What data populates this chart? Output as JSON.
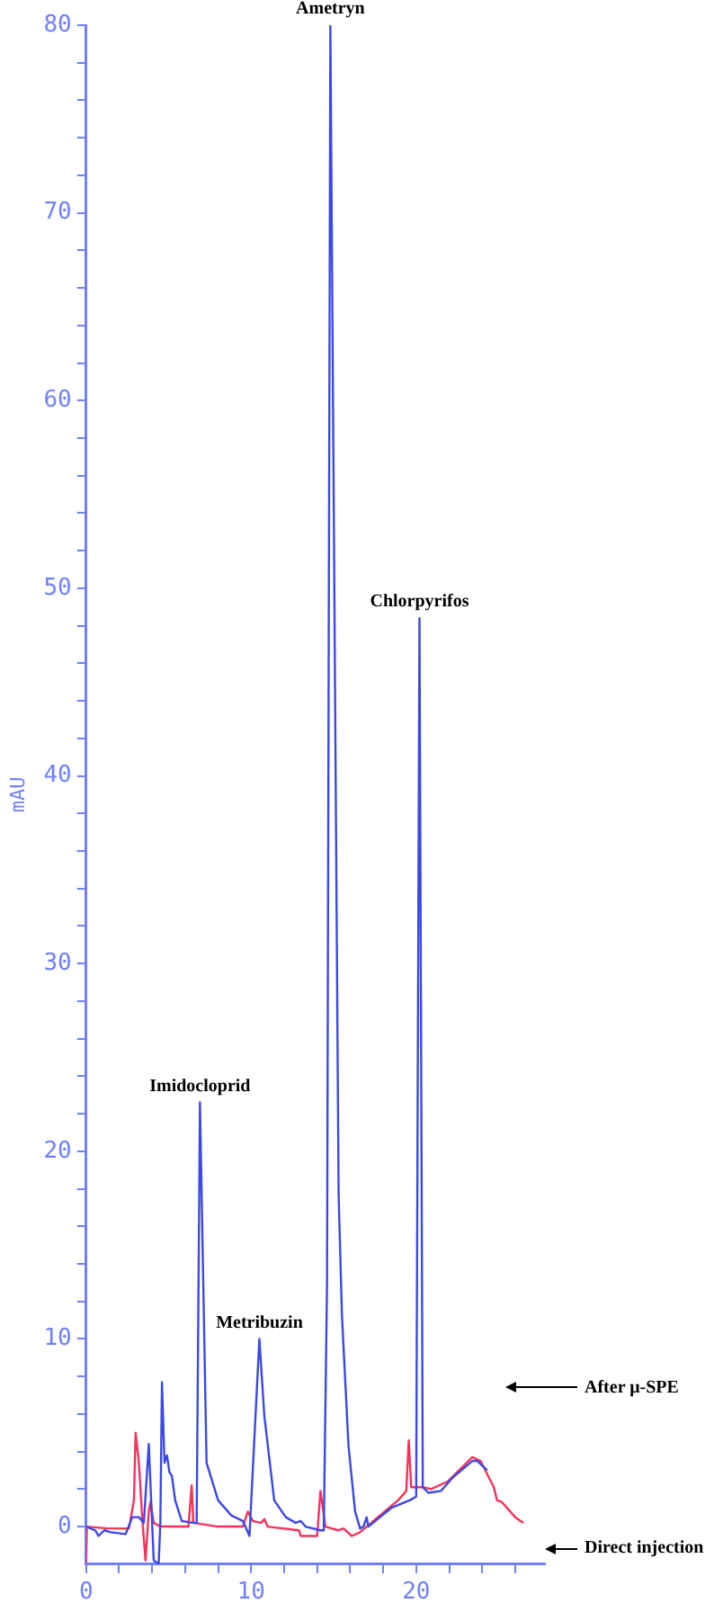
{
  "chart_data": {
    "type": "line",
    "ylabel": "mAU",
    "xlim": [
      0,
      27.8
    ],
    "ylim": [
      -2,
      80
    ],
    "xticks": [
      0,
      {
        "value": 2,
        "label": null
      },
      {
        "value": 4,
        "label": null
      },
      {
        "value": 6,
        "label": null
      },
      {
        "value": 8,
        "label": null
      },
      10,
      {
        "value": 12,
        "label": null
      },
      {
        "value": 14,
        "label": null
      },
      {
        "value": 16,
        "label": null
      },
      {
        "value": 18,
        "label": null
      },
      20,
      {
        "value": 22,
        "label": null
      },
      {
        "value": 24,
        "label": null
      },
      {
        "value": 26,
        "label": null
      }
    ],
    "yticks": [
      0,
      {
        "value": 2,
        "label": null
      },
      {
        "value": 4,
        "label": null
      },
      {
        "value": 6,
        "label": null
      },
      {
        "value": 8,
        "label": null
      },
      10,
      {
        "value": 12,
        "label": null
      },
      {
        "value": 14,
        "label": null
      },
      {
        "value": 16,
        "label": null
      },
      {
        "value": 18,
        "label": null
      },
      20,
      {
        "value": 22,
        "label": null
      },
      {
        "value": 24,
        "label": null
      },
      {
        "value": 26,
        "label": null
      },
      {
        "value": 28,
        "label": null
      },
      30,
      {
        "value": 32,
        "label": null
      },
      {
        "value": 34,
        "label": null
      },
      {
        "value": 36,
        "label": null
      },
      {
        "value": 38,
        "label": null
      },
      40,
      {
        "value": 42,
        "label": null
      },
      {
        "value": 44,
        "label": null
      },
      {
        "value": 46,
        "label": null
      },
      {
        "value": 48,
        "label": null
      },
      50,
      {
        "value": 52,
        "label": null
      },
      {
        "value": 54,
        "label": null
      },
      {
        "value": 56,
        "label": null
      },
      {
        "value": 58,
        "label": null
      },
      60,
      {
        "value": 62,
        "label": null
      },
      {
        "value": 64,
        "label": null
      },
      {
        "value": 66,
        "label": null
      },
      {
        "value": 68,
        "label": null
      },
      70,
      {
        "value": 72,
        "label": null
      },
      {
        "value": 74,
        "label": null
      },
      {
        "value": 76,
        "label": null
      },
      {
        "value": 78,
        "label": null
      },
      80
    ],
    "series": [
      {
        "name": "After μ-SPE",
        "color": "#3a48e6",
        "x": [
          0,
          0.56,
          0.75,
          1.1,
          1.5,
          2.4,
          2.8,
          3.2,
          3.5,
          3.8,
          4.0,
          4.1,
          4.4,
          4.5,
          4.6,
          4.75,
          4.9,
          5.05,
          5.2,
          5.4,
          5.8,
          6.5,
          6.7,
          6.9,
          7.3,
          8.0,
          8.8,
          9.5,
          9.9,
          10.5,
          10.8,
          11.4,
          12.1,
          12.7,
          13.0,
          13.3,
          14.2,
          14.4,
          14.6,
          14.8,
          15.3,
          15.5,
          15.9,
          16.3,
          16.6,
          16.8,
          17.0,
          17.1,
          18.5,
          19.6,
          20.0,
          20.2,
          20.4,
          20.75,
          21.5,
          22.2,
          23.4,
          23.7,
          24.3
        ],
        "values": [
          0,
          -0.2,
          -0.5,
          -0.2,
          -0.3,
          -0.4,
          0.5,
          0.5,
          0.2,
          4.4,
          0.2,
          -1.8,
          -2,
          0.2,
          7.7,
          3.4,
          3.8,
          2.9,
          2.7,
          1.4,
          0.3,
          0.2,
          0.2,
          22.6,
          3.4,
          1.4,
          0.6,
          0.3,
          -0.5,
          10.0,
          5.9,
          1.4,
          0.5,
          0.2,
          0.3,
          0,
          -0.2,
          -0.2,
          13,
          80,
          17.7,
          11.3,
          4.3,
          0.8,
          -0.1,
          0,
          0.5,
          0,
          1.0,
          1.4,
          1.6,
          48.4,
          2.1,
          1.8,
          1.9,
          2.6,
          3.5,
          3.5,
          3.0
        ]
      },
      {
        "name": "Direct injection",
        "color": "#f5325a",
        "x": [
          0,
          0.05,
          1.3,
          2.6,
          2.9,
          3.0,
          3.2,
          3.4,
          3.6,
          3.8,
          3.9,
          4.1,
          4.5,
          6.2,
          6.4,
          6.5,
          8.0,
          9.5,
          9.8,
          10.1,
          10.6,
          10.8,
          11.0,
          12.9,
          13.0,
          14.0,
          14.2,
          14.5,
          15.3,
          15.6,
          16.1,
          16.6,
          17.8,
          18.9,
          19.4,
          19.55,
          19.7,
          20.4,
          20.9,
          21.9,
          23.4,
          23.9,
          24.7,
          24.9,
          25.2,
          26.0,
          26.5
        ],
        "values": [
          -2,
          0,
          -0.1,
          -0.1,
          1.4,
          5.0,
          3.4,
          0.5,
          -1.8,
          0.8,
          1.3,
          0.2,
          0,
          0,
          2.2,
          0.2,
          0,
          0,
          0.8,
          0.3,
          0.2,
          0.4,
          0,
          -0.2,
          -0.5,
          -0.5,
          1.9,
          0,
          -0.2,
          -0.1,
          -0.5,
          -0.3,
          0.6,
          1.4,
          1.9,
          4.6,
          2.1,
          2.1,
          2.0,
          2.4,
          3.7,
          3.5,
          2.1,
          1.4,
          1.3,
          0.5,
          0.2
        ]
      }
    ],
    "annotations": [
      {
        "text": "Ametryn",
        "x": 14.8,
        "y": 80
      },
      {
        "text": "Imidocloprid",
        "x": 6.9,
        "y": 22.6
      },
      {
        "text": "Metribuzin",
        "x": 10.5,
        "y": 10.0
      },
      {
        "text": "Chlorpyrifos",
        "x": 20.2,
        "y": 48.4
      }
    ]
  }
}
